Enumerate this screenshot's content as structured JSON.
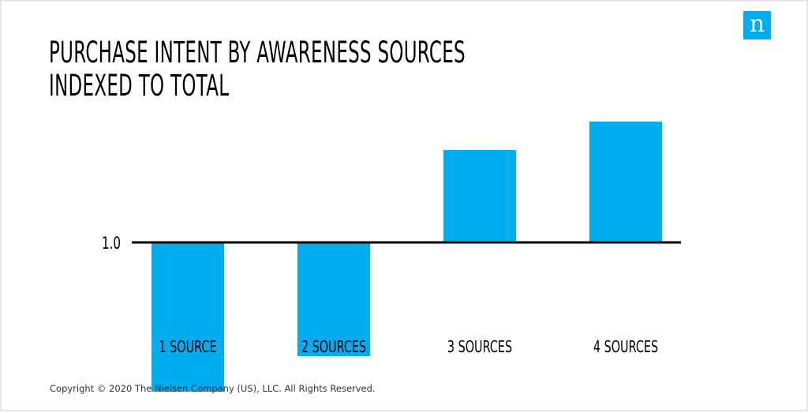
{
  "title_lines": [
    "PURCHASE INTENT BY AWARENESS SOURCES",
    "INDEXED TO TOTAL"
  ],
  "logo": {
    "letter": "n",
    "icon": "nielsen-n-icon",
    "color": "#00aeef"
  },
  "copyright": "Copyright © 2020 The Nielsen Company (US), LLC. All Rights Reserved.",
  "chart_data": {
    "type": "bar",
    "title": "PURCHASE INTENT BY AWARENESS SOURCES INDEXED TO TOTAL",
    "categories": [
      "1 SOURCE",
      "2 SOURCES",
      "3 SOURCES",
      "4 SOURCES"
    ],
    "values": [
      0.79,
      0.84,
      1.13,
      1.17
    ],
    "baseline": 1.0,
    "baseline_label": "1.0",
    "ylim": [
      0.78,
      1.18
    ],
    "bar_color": "#00aeef",
    "grid": false,
    "legend": "none",
    "xlabel": "",
    "ylabel": ""
  }
}
